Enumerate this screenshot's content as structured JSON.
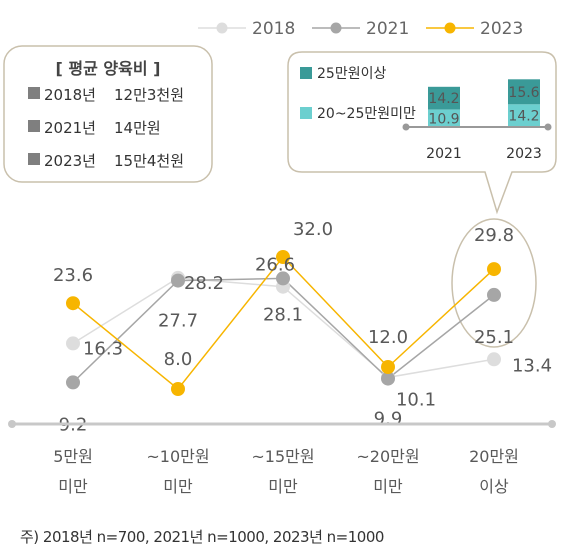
{
  "chart_data": {
    "type": "line",
    "categories": [
      [
        "5만원",
        "미만"
      ],
      [
        "~10만원",
        "미만"
      ],
      [
        "~15만원",
        "미만"
      ],
      [
        "~20만원",
        "미만"
      ],
      [
        "20만원",
        "이상"
      ]
    ],
    "series": [
      {
        "name": "2018",
        "color": "#dddddd",
        "values": [
          16.3,
          28.2,
          26.6,
          10.1,
          13.4
        ],
        "labels": [
          "16.3",
          "28.2",
          "26.6",
          "10.1",
          "13.4"
        ]
      },
      {
        "name": "2021",
        "color": "#a6a6a6",
        "values": [
          9.2,
          27.7,
          28.1,
          9.9,
          25.1
        ],
        "labels": [
          "9.2",
          "27.7",
          "28.1",
          "9.9",
          "25.1"
        ]
      },
      {
        "name": "2023",
        "color": "#f7b500",
        "values": [
          23.6,
          8.0,
          32.0,
          12.0,
          29.8
        ],
        "labels": [
          "23.6",
          "8.0",
          "32.0",
          "12.0",
          "29.8"
        ]
      }
    ],
    "legend": "top-right",
    "avg_box": {
      "title": "[ 평균 양육비 ]",
      "rows": [
        {
          "year": "2018년",
          "value": "12만3천원"
        },
        {
          "year": "2021년",
          "value": "14만원"
        },
        {
          "year": "2023년",
          "value": "15만4천원"
        }
      ]
    },
    "inset": {
      "type": "stacked-bar",
      "categories": [
        "2021",
        "2023"
      ],
      "series": [
        {
          "name": "25만원이상",
          "color": "#3a9a98",
          "values": [
            14.2,
            15.6
          ],
          "labels": [
            "14.2",
            "15.6"
          ]
        },
        {
          "name": "20~25만원미만",
          "color": "#6ccfcf",
          "values": [
            10.9,
            14.2
          ],
          "labels": [
            "10.9",
            "14.2"
          ]
        }
      ]
    }
  },
  "footnote": "주) 2018년 n=700, 2021년 n=1000, 2023년 n=1000"
}
